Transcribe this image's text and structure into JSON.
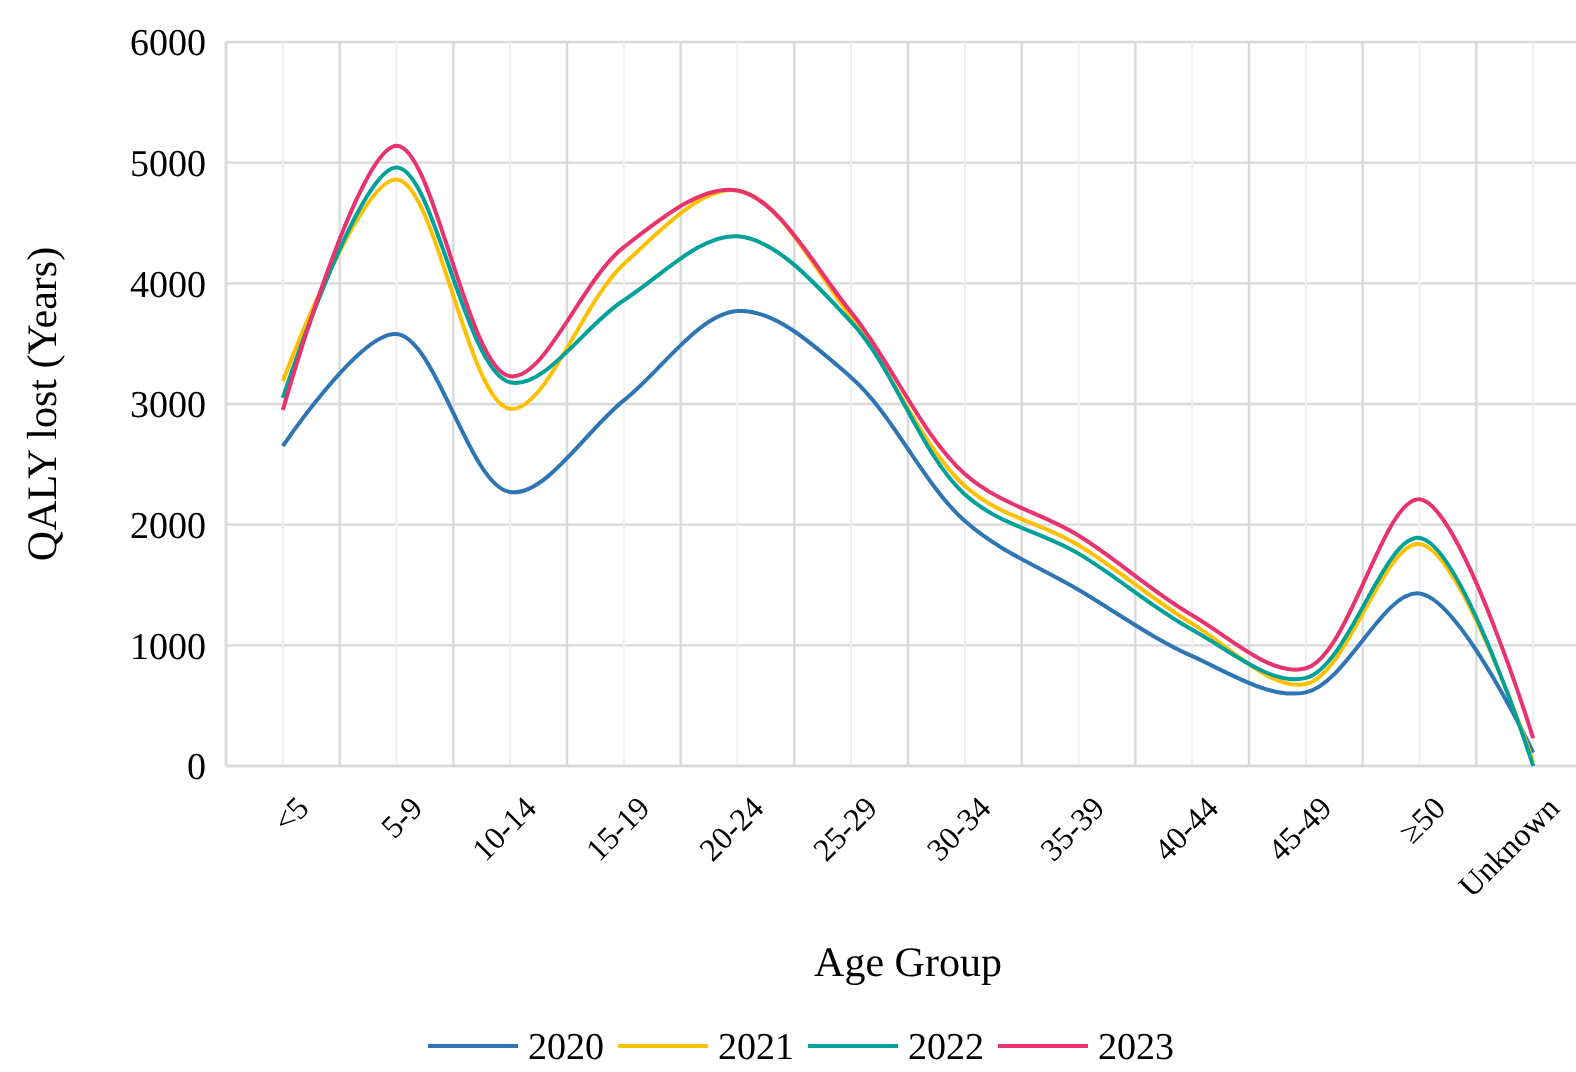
{
  "chart_data": {
    "type": "line",
    "xlabel": "Age Group",
    "ylabel": "QALY lost (Years)",
    "categories": [
      "<5",
      "5-9",
      "10-14",
      "15-19",
      "20-24",
      "25-29",
      "30-34",
      "35-39",
      "40-44",
      "45-49",
      "≥50",
      "Unknown"
    ],
    "series": [
      {
        "name": "2020",
        "color": "#2e75b6",
        "values": [
          2650,
          3580,
          2270,
          3030,
          3770,
          3220,
          2030,
          1460,
          910,
          610,
          1430,
          110
        ]
      },
      {
        "name": "2021",
        "color": "#ffc000",
        "values": [
          3190,
          4860,
          2960,
          4160,
          4770,
          3720,
          2320,
          1830,
          1180,
          680,
          1840,
          30
        ]
      },
      {
        "name": "2022",
        "color": "#00a19a",
        "values": [
          3050,
          4960,
          3180,
          3860,
          4390,
          3680,
          2250,
          1760,
          1130,
          730,
          1890,
          0
        ]
      },
      {
        "name": "2023",
        "color": "#e8336f",
        "values": [
          2950,
          5140,
          3230,
          4300,
          4770,
          3760,
          2420,
          1910,
          1250,
          810,
          2210,
          230
        ]
      }
    ],
    "ylim": [
      0,
      6000
    ],
    "yticks": [
      0,
      1000,
      2000,
      3000,
      4000,
      5000,
      6000
    ],
    "grid": true,
    "legend": "bottom",
    "marker": "none",
    "line_style": "solid"
  }
}
